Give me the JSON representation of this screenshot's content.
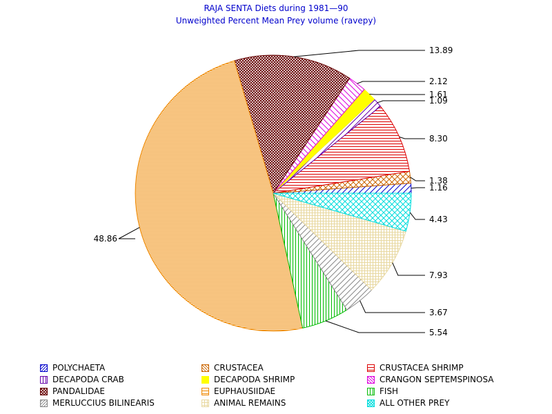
{
  "title": "RAJA SENTA Diets during 1981—90",
  "subtitle": "Unweighted Percent Mean Prey volume (ravepy)",
  "chart_data": {
    "type": "pie",
    "title": "RAJA SENTA Diets during 1981—90",
    "subtitle": "Unweighted Percent Mean Prey volume (ravepy)",
    "slices": [
      {
        "name": "POLYCHAETA",
        "value": 1.16,
        "label": "1.16",
        "color": "#0000cc",
        "pattern": "diag-up"
      },
      {
        "name": "CRUSTACEA",
        "value": 1.38,
        "label": "1.38",
        "color": "#cc6600",
        "pattern": "crosshatch-diag"
      },
      {
        "name": "CRUSTACEA SHRIMP",
        "value": 8.3,
        "label": "8.30",
        "color": "#dd0000",
        "pattern": "horizontal"
      },
      {
        "name": "DECAPODA CRAB",
        "value": 1.09,
        "label": "1.09",
        "color": "#6600aa",
        "pattern": "diag-up"
      },
      {
        "name": "DECAPODA SHRIMP",
        "value": 1.61,
        "label": "1.61",
        "color": "#ffff00",
        "pattern": "solid"
      },
      {
        "name": "CRANGON SEPTEMSPINOSA",
        "value": 2.12,
        "label": "2.12",
        "color": "#dd00dd",
        "pattern": "diag-down"
      },
      {
        "name": "PANDALIDAE",
        "value": 13.89,
        "label": "13.89",
        "color": "#660000",
        "pattern": "crosshatch-diag-dense"
      },
      {
        "name": "EUPHAUSIIDAE",
        "value": 48.86,
        "label": "48.86",
        "color": "#ee8800",
        "pattern": "horizontal-dense"
      },
      {
        "name": "FISH",
        "value": 5.54,
        "label": "5.54",
        "color": "#00bb00",
        "pattern": "vertical"
      },
      {
        "name": "MERLUCCIUS BILINEARIS",
        "value": 3.67,
        "label": "3.67",
        "color": "#888888",
        "pattern": "diag-up"
      },
      {
        "name": "ANIMAL REMAINS",
        "value": 7.93,
        "label": "7.93",
        "color": "#e8d8a0",
        "pattern": "grid"
      },
      {
        "name": "ALL OTHER PREY",
        "value": 4.43,
        "label": "4.43",
        "color": "#00dddd",
        "pattern": "crosshatch-diag"
      }
    ],
    "start_angle_deg": 0,
    "direction": "counterclockwise",
    "legend_position": "bottom"
  },
  "legend": [
    {
      "label": "POLYCHAETA",
      "color": "#0000cc",
      "pattern": "diag-up"
    },
    {
      "label": "CRUSTACEA",
      "color": "#cc6600",
      "pattern": "diag-down"
    },
    {
      "label": "CRUSTACEA SHRIMP",
      "color": "#dd0000",
      "pattern": "horizontal"
    },
    {
      "label": "DECAPODA CRAB",
      "color": "#6600aa",
      "pattern": "vertical"
    },
    {
      "label": "DECAPODA SHRIMP",
      "color": "#ffff00",
      "pattern": "solid"
    },
    {
      "label": "CRANGON SEPTEMSPINOSA",
      "color": "#dd00dd",
      "pattern": "diag-down"
    },
    {
      "label": "PANDALIDAE",
      "color": "#660000",
      "pattern": "crosshatch-diag"
    },
    {
      "label": "EUPHAUSIIDAE",
      "color": "#ee8800",
      "pattern": "horizontal"
    },
    {
      "label": "FISH",
      "color": "#00bb00",
      "pattern": "vertical"
    },
    {
      "label": "MERLUCCIUS BILINEARIS",
      "color": "#888888",
      "pattern": "diag-up"
    },
    {
      "label": "ANIMAL REMAINS",
      "color": "#e8d8a0",
      "pattern": "grid"
    },
    {
      "label": "ALL OTHER PREY",
      "color": "#00dddd",
      "pattern": "crosshatch-diag"
    }
  ]
}
